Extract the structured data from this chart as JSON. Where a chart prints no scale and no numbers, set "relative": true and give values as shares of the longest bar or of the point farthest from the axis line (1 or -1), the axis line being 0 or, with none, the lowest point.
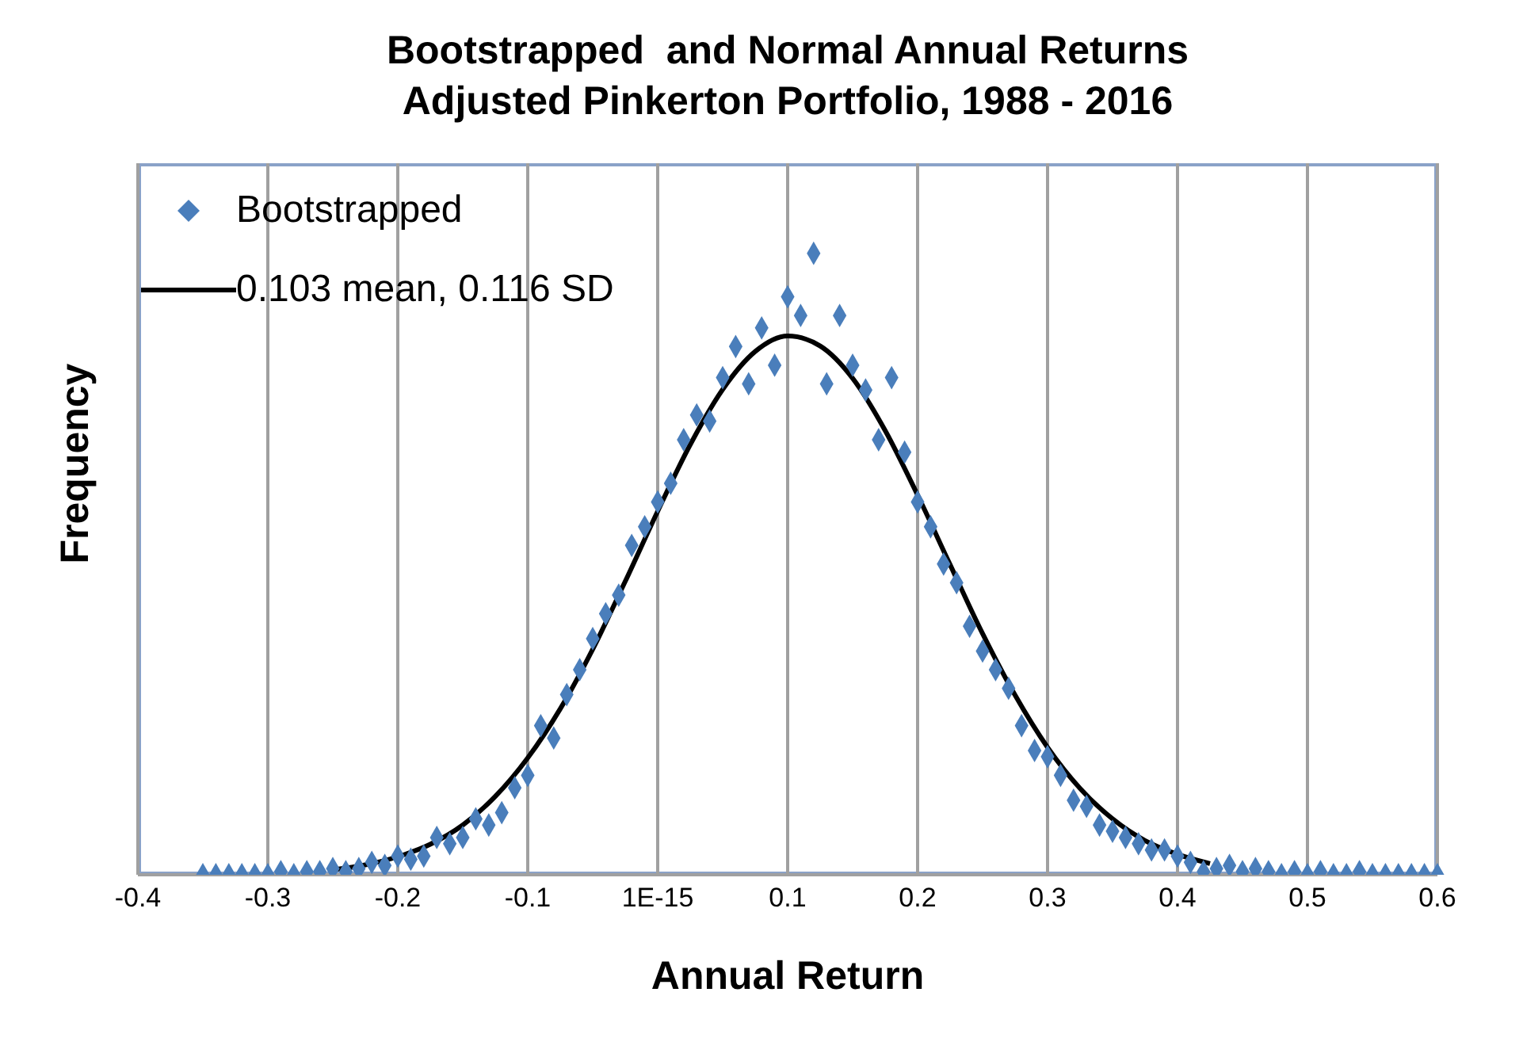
{
  "chart_data": {
    "type": "scatter",
    "title": "Bootstrapped  and Normal Annual Returns\nAdjusted Pinkerton Portfolio, 1988 - 2016",
    "xlabel": "Annual Return",
    "ylabel": "Frequency",
    "relative": true,
    "xlim": [
      -0.4,
      0.6
    ],
    "xticks": [
      -0.4,
      -0.3,
      -0.2,
      -0.1,
      {
        "value": 0,
        "label": "1E-15"
      },
      0.1,
      0.2,
      0.3,
      0.4,
      0.5,
      0.6
    ],
    "grid": "x",
    "legend": "top left",
    "series": [
      {
        "name": "Bootstrapped",
        "marker": "diamond",
        "color": "#4a7ebb",
        "x": [
          -0.35,
          -0.34,
          -0.33,
          -0.32,
          -0.31,
          -0.3,
          -0.29,
          -0.28,
          -0.27,
          -0.26,
          -0.25,
          -0.24,
          -0.23,
          -0.22,
          -0.21,
          -0.2,
          -0.19,
          -0.18,
          -0.17,
          -0.16,
          -0.15,
          -0.14,
          -0.13,
          -0.12,
          -0.11,
          -0.1,
          -0.09,
          -0.08,
          -0.07,
          -0.06,
          -0.05,
          -0.04,
          -0.03,
          -0.02,
          -0.01,
          0,
          0.01,
          0.02,
          0.03,
          0.04,
          0.05,
          0.06,
          0.07,
          0.08,
          0.09,
          0.1,
          0.11,
          0.12,
          0.13,
          0.14,
          0.15,
          0.16,
          0.17,
          0.18,
          0.19,
          0.2,
          0.21,
          0.22,
          0.23,
          0.24,
          0.25,
          0.26,
          0.27,
          0.28,
          0.29,
          0.3,
          0.31,
          0.32,
          0.33,
          0.34,
          0.35,
          0.36,
          0.37,
          0.38,
          0.39,
          0.4,
          0.41,
          0.42,
          0.43,
          0.44,
          0.45,
          0.46,
          0.47,
          0.48,
          0.49,
          0.5,
          0.51,
          0.52,
          0.53,
          0.54,
          0.55,
          0.56,
          0.57,
          0.58,
          0.59,
          0.6
        ],
        "values": [
          0,
          0,
          0,
          0,
          0,
          0,
          0.005,
          0,
          0.005,
          0.005,
          0.01,
          0.005,
          0.01,
          0.02,
          0.015,
          0.03,
          0.025,
          0.03,
          0.06,
          0.05,
          0.06,
          0.09,
          0.08,
          0.1,
          0.14,
          0.16,
          0.24,
          0.22,
          0.29,
          0.33,
          0.38,
          0.42,
          0.45,
          0.53,
          0.56,
          0.6,
          0.63,
          0.7,
          0.74,
          0.73,
          0.8,
          0.85,
          0.79,
          0.88,
          0.82,
          0.93,
          0.9,
          1,
          0.79,
          0.9,
          0.82,
          0.78,
          0.7,
          0.8,
          0.68,
          0.6,
          0.56,
          0.5,
          0.47,
          0.4,
          0.36,
          0.33,
          0.3,
          0.24,
          0.2,
          0.19,
          0.16,
          0.12,
          0.11,
          0.08,
          0.07,
          0.06,
          0.05,
          0.04,
          0.04,
          0.03,
          0.02,
          0.005,
          0.01,
          0.015,
          0.005,
          0.01,
          0.005,
          0,
          0.005,
          0,
          0.005,
          0,
          0,
          0.005,
          0,
          0,
          0,
          0,
          0,
          0
        ]
      },
      {
        "name": "0.103 mean, 0.116 SD",
        "type": "line",
        "marker": "none",
        "line_style": "solid",
        "color": "#000000",
        "x": [
          -0.25,
          -0.225,
          -0.2,
          -0.175,
          -0.15,
          -0.125,
          -0.1,
          -0.075,
          -0.05,
          -0.025,
          0,
          0.025,
          0.05,
          0.075,
          0.1,
          0.125,
          0.15,
          0.175,
          0.2,
          0.225,
          0.25,
          0.275,
          0.3,
          0.325,
          0.35,
          0.375,
          0.4,
          0.425
        ],
        "values": [
          0.008,
          0.016,
          0.029,
          0.049,
          0.08,
          0.126,
          0.188,
          0.267,
          0.363,
          0.472,
          0.585,
          0.692,
          0.781,
          0.842,
          0.867,
          0.851,
          0.799,
          0.715,
          0.611,
          0.499,
          0.388,
          0.289,
          0.205,
          0.139,
          0.09,
          0.055,
          0.033,
          0.018
        ]
      }
    ]
  }
}
